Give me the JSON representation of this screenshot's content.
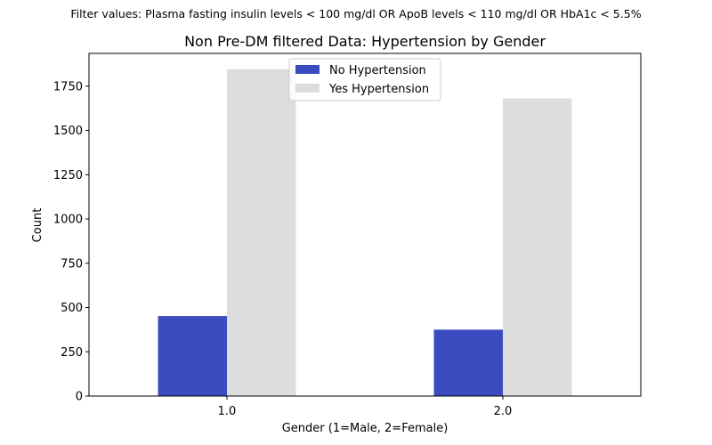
{
  "suptitle": "Filter values: Plasma fasting insulin levels < 100 mg/dl OR ApoB levels < 110 mg/dl OR HbA1c < 5.5%",
  "chart_data": {
    "type": "bar",
    "title": "Non Pre-DM filtered Data: Hypertension by Gender",
    "xlabel": "Gender (1=Male, 2=Female)",
    "ylabel": "Count",
    "categories": [
      "1.0",
      "2.0"
    ],
    "series": [
      {
        "name": "No Hypertension",
        "values": [
          452,
          375
        ],
        "color": "#3b4cc0"
      },
      {
        "name": "Yes Hypertension",
        "values": [
          1846,
          1681
        ],
        "color": "#dddddd"
      }
    ],
    "ylim": [
      0,
      1935
    ],
    "yticks": [
      0,
      250,
      500,
      750,
      1000,
      1250,
      1500,
      1750
    ],
    "legend": "top-center",
    "grid": false
  }
}
